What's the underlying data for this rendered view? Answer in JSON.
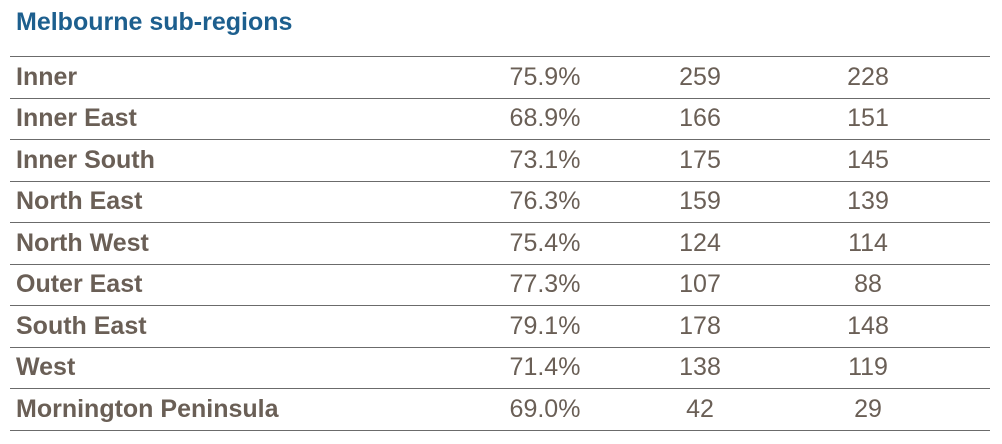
{
  "title": "Melbourne sub-regions",
  "rows": [
    {
      "name": "Inner",
      "pct": "75.9%",
      "v1": "259",
      "v2": "228"
    },
    {
      "name": "Inner East",
      "pct": "68.9%",
      "v1": "166",
      "v2": "151"
    },
    {
      "name": "Inner South",
      "pct": "73.1%",
      "v1": "175",
      "v2": "145"
    },
    {
      "name": "North East",
      "pct": "76.3%",
      "v1": "159",
      "v2": "139"
    },
    {
      "name": "North West",
      "pct": "75.4%",
      "v1": "124",
      "v2": "114"
    },
    {
      "name": "Outer East",
      "pct": "77.3%",
      "v1": "107",
      "v2": "88"
    },
    {
      "name": "South East",
      "pct": "79.1%",
      "v1": "178",
      "v2": "148"
    },
    {
      "name": "West",
      "pct": "71.4%",
      "v1": "138",
      "v2": "119"
    },
    {
      "name": "Mornington Peninsula",
      "pct": "69.0%",
      "v1": "42",
      "v2": "29"
    }
  ]
}
